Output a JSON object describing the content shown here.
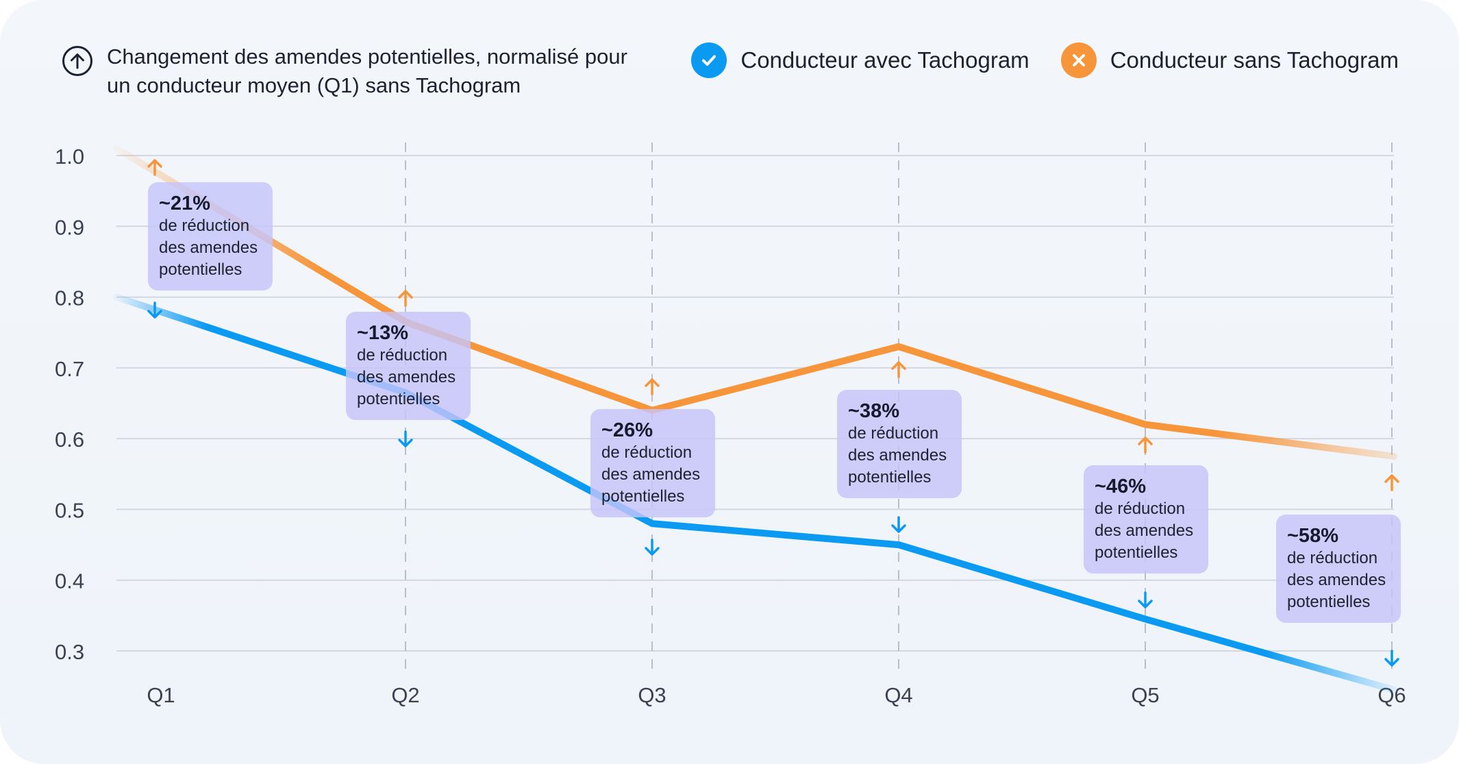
{
  "header": {
    "title": "Changement des amendes potentielles, normalisé pour un conducteur moyen (Q1) sans Tachogram",
    "title_icon": "arrow-up-circle-icon"
  },
  "legend": [
    {
      "label": "Conducteur avec Tachogram",
      "icon": "check-icon",
      "color": "#0a9af2"
    },
    {
      "label": "Conducteur sans Tachogram",
      "icon": "close-icon",
      "color": "#f7953a"
    }
  ],
  "chart_data": {
    "type": "line",
    "x": [
      "Q1",
      "Q2",
      "Q3",
      "Q4",
      "Q5",
      "Q6"
    ],
    "ylim": [
      0.3,
      1.0
    ],
    "yticks": [
      "1.0",
      "0.9",
      "0.8",
      "0.7",
      "0.6",
      "0.5",
      "0.4",
      "0.3"
    ],
    "grid": true,
    "legend_placement": "top-right",
    "series": [
      {
        "name": "Conducteur avec Tachogram",
        "color": "#0a9af2",
        "values": [
          0.8,
          0.665,
          0.48,
          0.45,
          0.345,
          0.245
        ]
      },
      {
        "name": "Conducteur sans Tachogram",
        "color": "#f7953a",
        "values": [
          1.01,
          0.765,
          0.64,
          0.73,
          0.62,
          0.575
        ]
      }
    ],
    "annotations": [
      {
        "pct": "~21%",
        "text": "de réduction des amendes potentielles"
      },
      {
        "pct": "~13%",
        "text": "de réduction des amendes potentielles"
      },
      {
        "pct": "~26%",
        "text": "de réduction des amendes potentielles"
      },
      {
        "pct": "~38%",
        "text": "de réduction des amendes potentielles"
      },
      {
        "pct": "~46%",
        "text": "de réduction des amendes potentielles"
      },
      {
        "pct": "~58%",
        "text": "de réduction des amendes potentielles"
      }
    ]
  }
}
